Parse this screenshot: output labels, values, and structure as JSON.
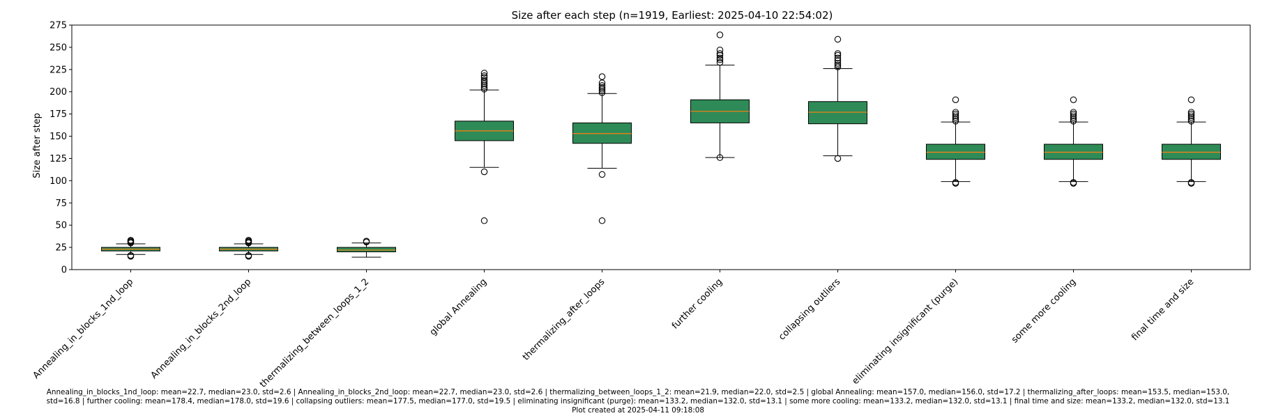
{
  "chart_data": {
    "type": "box",
    "title": "Size after each step (n=1919, Earliest: 2025-04-10 22:54:02)",
    "xlabel": "",
    "ylabel": "Size after step",
    "ylim": [
      0,
      275
    ],
    "yticks": [
      0,
      25,
      50,
      75,
      100,
      125,
      150,
      175,
      200,
      225,
      250,
      275
    ],
    "grid": false,
    "colors": {
      "box_fill": "#2e8b57",
      "median": "#ff7f0e",
      "outline": "#000000"
    },
    "categories": [
      "Annealing_in_blocks_1nd_loop",
      "Annealing_in_blocks_2nd_loop",
      "thermalizing_between_loops_1_2",
      "global Annealing",
      "thermalizing_after_loops",
      "further cooling",
      "collapsing outliers",
      "eliminating insignificant (purge)",
      "some more cooling",
      "final time and size"
    ],
    "boxes": [
      {
        "whisker_low": 17,
        "q1": 21,
        "median": 23,
        "q3": 25,
        "whisker_high": 29,
        "outliers": [
          15,
          16,
          30,
          31,
          32,
          33
        ]
      },
      {
        "whisker_low": 17,
        "q1": 21,
        "median": 23,
        "q3": 25,
        "whisker_high": 29,
        "outliers": [
          15,
          16,
          30,
          31,
          32,
          33
        ]
      },
      {
        "whisker_low": 14,
        "q1": 20,
        "median": 22,
        "q3": 25,
        "whisker_high": 30,
        "outliers": [
          31,
          32
        ]
      },
      {
        "whisker_low": 115,
        "q1": 145,
        "median": 156,
        "q3": 167,
        "whisker_high": 202,
        "outliers": [
          55,
          110,
          203,
          205,
          207,
          209,
          211,
          213,
          216,
          218,
          221
        ]
      },
      {
        "whisker_low": 114,
        "q1": 142,
        "median": 153,
        "q3": 165,
        "whisker_high": 198,
        "outliers": [
          55,
          107,
          199,
          201,
          203,
          205,
          207,
          210,
          217
        ]
      },
      {
        "whisker_low": 126,
        "q1": 165,
        "median": 178,
        "q3": 191,
        "whisker_high": 230,
        "outliers": [
          126,
          233,
          236,
          238,
          241,
          243,
          247,
          264
        ]
      },
      {
        "whisker_low": 128,
        "q1": 164,
        "median": 177,
        "q3": 189,
        "whisker_high": 226,
        "outliers": [
          125,
          228,
          230,
          232,
          235,
          238,
          241,
          243,
          259
        ]
      },
      {
        "whisker_low": 99,
        "q1": 124,
        "median": 132,
        "q3": 141,
        "whisker_high": 166,
        "outliers": [
          97,
          98,
          167,
          169,
          171,
          173,
          175,
          177,
          191
        ]
      },
      {
        "whisker_low": 99,
        "q1": 124,
        "median": 132,
        "q3": 141,
        "whisker_high": 166,
        "outliers": [
          97,
          98,
          167,
          169,
          171,
          173,
          175,
          177,
          191
        ]
      },
      {
        "whisker_low": 99,
        "q1": 124,
        "median": 132,
        "q3": 141,
        "whisker_high": 166,
        "outliers": [
          97,
          98,
          167,
          169,
          171,
          173,
          175,
          177,
          191
        ]
      }
    ]
  },
  "footer": {
    "stats_line1": "Annealing_in_blocks_1nd_loop: mean=22.7, median=23.0, std=2.6 | Annealing_in_blocks_2nd_loop: mean=22.7, median=23.0, std=2.6 | thermalizing_between_loops_1_2: mean=21.9, median=22.0, std=2.5 | global Annealing: mean=157.0, median=156.0, std=17.2 | thermalizing_after_loops: mean=153.5, median=153.0,",
    "stats_line2": "std=16.8 | further cooling: mean=178.4, median=178.0, std=19.6 | collapsing outliers: mean=177.5, median=177.0, std=19.5 | eliminating insignificant (purge): mean=133.2, median=132.0, std=13.1 | some more cooling: mean=133.2, median=132.0, std=13.1 | final time and size: mean=133.2, median=132.0, std=13.1",
    "created": "Plot created at 2025-04-11 09:18:08"
  }
}
